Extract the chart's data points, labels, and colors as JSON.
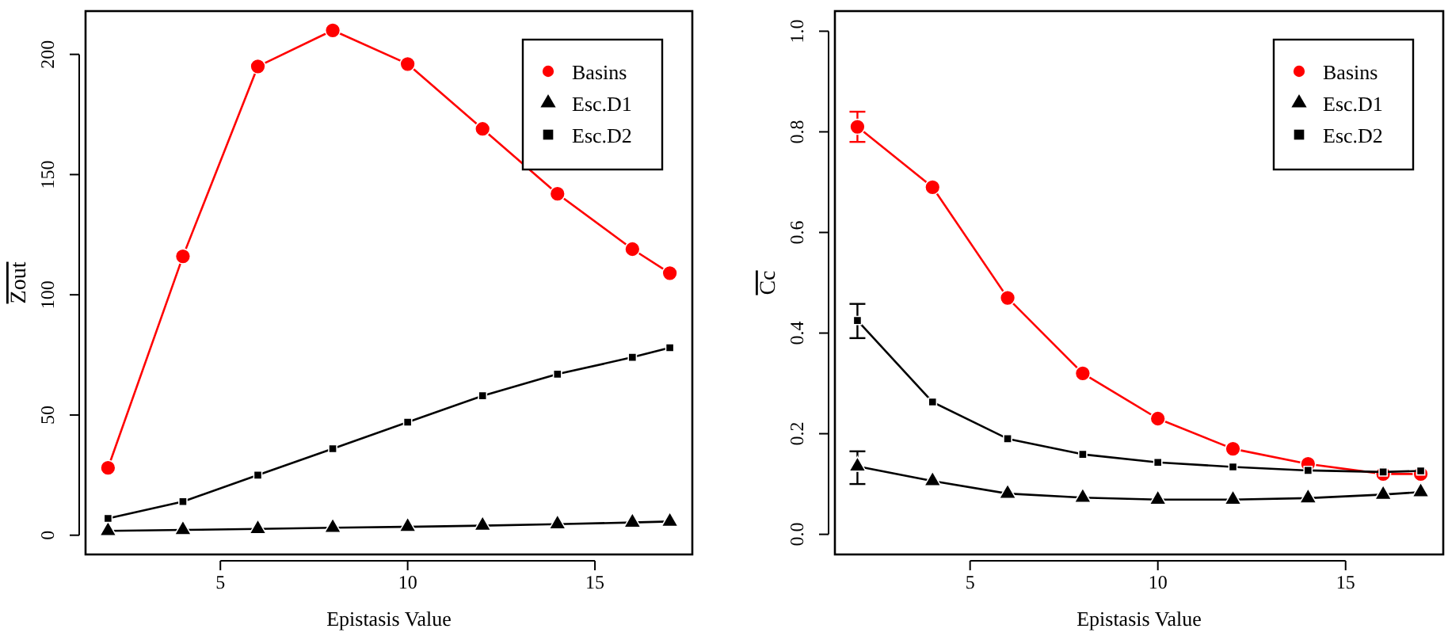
{
  "chart_data": [
    {
      "type": "line",
      "xlabel": "Epistasis Value",
      "ylabel": "Zout",
      "x": [
        2,
        4,
        6,
        8,
        10,
        12,
        14,
        16,
        17
      ],
      "xlim": [
        1.4,
        17.6
      ],
      "xticks": [
        5,
        10,
        15
      ],
      "ylim": [
        -8,
        218
      ],
      "yticks": [
        0,
        50,
        100,
        150,
        200
      ],
      "legend": "top right",
      "grid": false,
      "line_style": "solid",
      "series": [
        {
          "name": "Basins",
          "color": "#ff0000",
          "marker": "circle",
          "values": [
            28,
            116,
            195,
            210,
            196,
            169,
            142,
            119,
            109
          ]
        },
        {
          "name": "Esc.D1",
          "color": "#000000",
          "marker": "triangle",
          "values": [
            1.8,
            2.2,
            2.6,
            3.1,
            3.5,
            4,
            4.6,
            5.3,
            5.7
          ]
        },
        {
          "name": "Esc.D2",
          "color": "#000000",
          "marker": "square",
          "values": [
            7,
            14,
            25,
            36,
            47,
            58,
            67,
            74,
            78
          ]
        }
      ]
    },
    {
      "type": "line",
      "xlabel": "Epistasis Value",
      "ylabel": "Cc",
      "x": [
        2,
        4,
        6,
        8,
        10,
        12,
        14,
        16,
        17
      ],
      "xlim": [
        1.4,
        17.6
      ],
      "xticks": [
        5,
        10,
        15
      ],
      "ylim": [
        -0.04,
        1.04
      ],
      "yticks": [
        {
          "value": 0,
          "label": "0.0"
        },
        0.2,
        0.4,
        0.6,
        0.8,
        {
          "value": 1,
          "label": "1.0"
        }
      ],
      "legend": "top right",
      "grid": false,
      "line_style": "solid",
      "series": [
        {
          "name": "Basins",
          "color": "#ff0000",
          "marker": "circle",
          "values": [
            0.81,
            0.69,
            0.47,
            0.32,
            0.23,
            0.17,
            0.14,
            0.12,
            0.12
          ],
          "errors": [
            [
              0.78,
              0.84
            ],
            null,
            null,
            null,
            null,
            null,
            null,
            null,
            null
          ]
        },
        {
          "name": "Esc.D1",
          "color": "#000000",
          "marker": "triangle",
          "values": [
            0.135,
            0.106,
            0.081,
            0.073,
            0.069,
            0.069,
            0.072,
            0.079,
            0.084
          ],
          "errors": [
            [
              0.1,
              0.165
            ],
            null,
            null,
            null,
            null,
            null,
            null,
            null,
            null
          ]
        },
        {
          "name": "Esc.D2",
          "color": "#000000",
          "marker": "square",
          "values": [
            0.425,
            0.263,
            0.19,
            0.159,
            0.143,
            0.134,
            0.127,
            0.124,
            0.126
          ],
          "errors": [
            [
              0.39,
              0.458
            ],
            null,
            null,
            null,
            null,
            null,
            null,
            null,
            null
          ]
        }
      ]
    }
  ]
}
